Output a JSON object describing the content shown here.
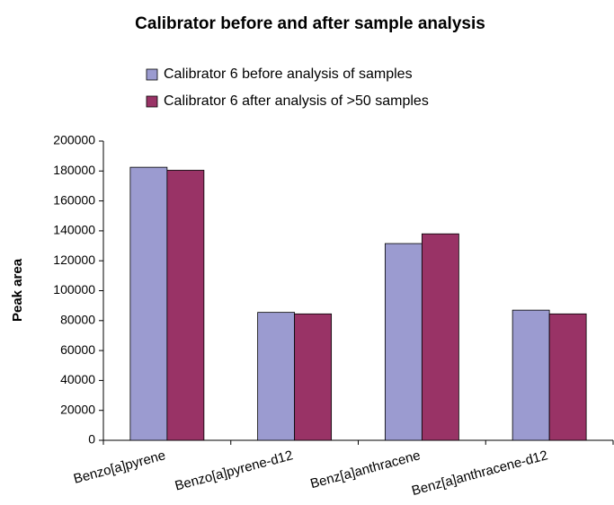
{
  "chart_data": {
    "type": "bar",
    "title": "Calibrator before and after sample analysis",
    "y_label": "Peak area",
    "categories": [
      "Benzo[a]pyrene",
      "Benzo[a]pyrene-d12",
      "Benz[a]anthracene",
      "Benz[a]anthracene-d12"
    ],
    "series": [
      {
        "name": "Calibrator 6 before analysis of samples",
        "color": "#9b9bd0",
        "values": [
          182500,
          85500,
          131500,
          87000
        ]
      },
      {
        "name": "Calibrator 6 after analysis of >50 samples",
        "color": "#993366",
        "values": [
          180500,
          84500,
          138000,
          84500
        ]
      }
    ],
    "ylim": [
      0,
      200000
    ],
    "yticks": [
      0,
      20000,
      40000,
      60000,
      80000,
      100000,
      120000,
      140000,
      160000,
      180000,
      200000
    ],
    "grid": false
  }
}
